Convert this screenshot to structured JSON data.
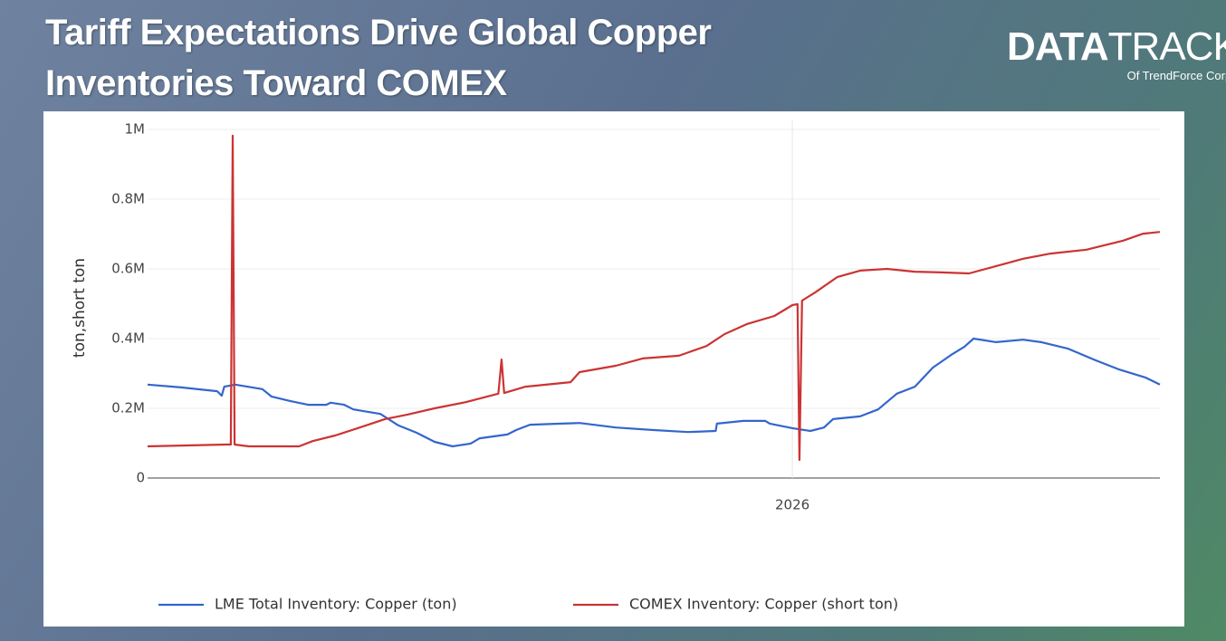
{
  "logo": {
    "brand_bold": "DATA",
    "brand_light": "TRACK",
    "sub": "Of TrendForce Corp."
  },
  "chart_data": {
    "type": "line",
    "title": [
      "Tariff Expectations Drive Global Copper",
      "Inventories Toward COMEX"
    ],
    "y_label": "ton,short ton",
    "xlim": [
      2025.0,
      2026.57
    ],
    "xticks": [
      2026
    ],
    "ylim": [
      0,
      1000000
    ],
    "yticks": [
      0,
      {
        "value": 200000,
        "label": "0.2M"
      },
      {
        "value": 400000,
        "label": "0.4M"
      },
      {
        "value": 600000,
        "label": "0.6M"
      },
      {
        "value": 800000,
        "label": "0.8M"
      },
      {
        "value": 1000000,
        "label": "1M"
      }
    ],
    "grid": true,
    "legend": "bottom",
    "series": [
      {
        "name": "LME Total Inventory: Copper (ton)",
        "color": "#3366cc",
        "x": [
          2025.0,
          2025.052,
          2025.108,
          2025.115,
          2025.119,
          2025.136,
          2025.178,
          2025.192,
          2025.221,
          2025.249,
          2025.277,
          2025.284,
          2025.305,
          2025.319,
          2025.361,
          2025.389,
          2025.417,
          2025.445,
          2025.473,
          2025.501,
          2025.515,
          2025.558,
          2025.572,
          2025.593,
          2025.642,
          2025.67,
          2025.726,
          2025.782,
          2025.838,
          2025.881,
          2025.883,
          2025.924,
          2025.958,
          2025.965,
          2026.0,
          2026.028,
          2026.049,
          2026.063,
          2026.105,
          2026.133,
          2026.162,
          2026.19,
          2026.218,
          2026.246,
          2026.267,
          2026.281,
          2026.316,
          2026.358,
          2026.386,
          2026.428,
          2026.47,
          2026.506,
          2026.548,
          2026.57
        ],
        "values": [
          268000,
          260000,
          249000,
          236000,
          262000,
          268000,
          255000,
          234000,
          221000,
          210000,
          210000,
          216000,
          210000,
          197000,
          184000,
          151000,
          130000,
          104000,
          91000,
          99000,
          114000,
          125000,
          138000,
          153000,
          156000,
          158000,
          145000,
          138000,
          132000,
          135000,
          156000,
          164000,
          164000,
          156000,
          143000,
          135000,
          145000,
          169000,
          177000,
          197000,
          242000,
          262000,
          317000,
          353000,
          377000,
          400000,
          390000,
          397000,
          390000,
          371000,
          338000,
          312000,
          288000,
          268000
        ]
      },
      {
        "name": "COMEX Inventory: Copper (short ton)",
        "color": "#cc3333",
        "x": [
          2025.0,
          2025.122,
          2025.129,
          2025.132,
          2025.135,
          2025.157,
          2025.235,
          2025.256,
          2025.291,
          2025.326,
          2025.368,
          2025.403,
          2025.445,
          2025.494,
          2025.544,
          2025.549,
          2025.553,
          2025.586,
          2025.656,
          2025.67,
          2025.726,
          2025.768,
          2025.824,
          2025.867,
          2025.895,
          2025.93,
          2025.972,
          2026.0,
          2026.008,
          2026.011,
          2026.015,
          2026.035,
          2026.07,
          2026.105,
          2026.147,
          2026.19,
          2026.232,
          2026.274,
          2026.316,
          2026.358,
          2026.4,
          2026.456,
          2026.513,
          2026.544,
          2026.57
        ],
        "values": [
          91000,
          96000,
          96000,
          982000,
          96000,
          91000,
          91000,
          106000,
          122000,
          143000,
          169000,
          182000,
          200000,
          218000,
          242000,
          340000,
          244000,
          262000,
          275000,
          304000,
          322000,
          343000,
          351000,
          379000,
          413000,
          442000,
          465000,
          496000,
          499000,
          52000,
          509000,
          532000,
          577000,
          595000,
          600000,
          592000,
          590000,
          587000,
          608000,
          629000,
          644000,
          655000,
          681000,
          701000,
          706000
        ]
      }
    ]
  }
}
